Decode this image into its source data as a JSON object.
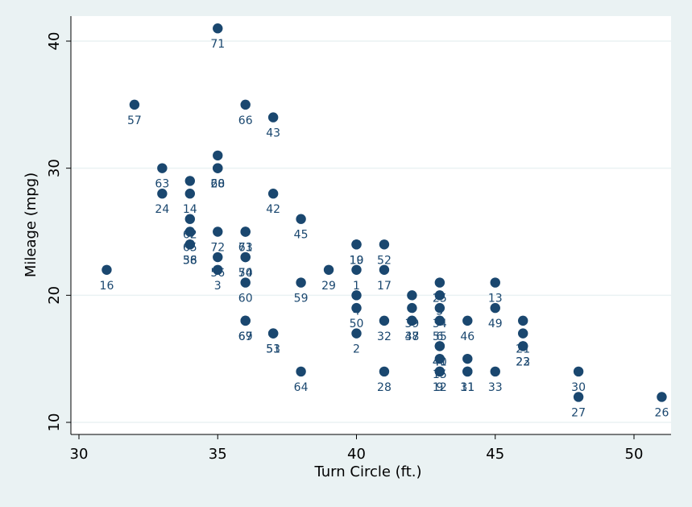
{
  "chart_data": {
    "type": "scatter",
    "xlabel": "Turn Circle (ft.)",
    "ylabel": "Mileage (mpg)",
    "xlim": [
      29.5,
      51.5
    ],
    "ylim": [
      9.5,
      41.0
    ],
    "xticks": [
      "30",
      "35",
      "40",
      "45",
      "50"
    ],
    "yticks": [
      "10",
      "20",
      "30",
      "40"
    ],
    "grid": "horizontal",
    "marker_color": "#1a476f",
    "label_color": "#1a476f",
    "plot_background": "#ffffff",
    "figure_background": "#eaf2f3",
    "points": [
      {
        "x": 35,
        "y": 41,
        "label": "71"
      },
      {
        "x": 32,
        "y": 35,
        "label": "57"
      },
      {
        "x": 36,
        "y": 35,
        "label": "66"
      },
      {
        "x": 37,
        "y": 34,
        "label": "43"
      },
      {
        "x": 35,
        "y": 31,
        "label": ""
      },
      {
        "x": 35,
        "y": 30,
        "label": "68"
      },
      {
        "x": 35,
        "y": 30,
        "label": "20"
      },
      {
        "x": 33,
        "y": 30,
        "label": "63"
      },
      {
        "x": 34,
        "y": 29,
        "label": ""
      },
      {
        "x": 33,
        "y": 28,
        "label": "24"
      },
      {
        "x": 34,
        "y": 28,
        "label": "14"
      },
      {
        "x": 37,
        "y": 28,
        "label": "42"
      },
      {
        "x": 34,
        "y": 26,
        "label": "62"
      },
      {
        "x": 38,
        "y": 26,
        "label": "45"
      },
      {
        "x": 34,
        "y": 25,
        "label": "65"
      },
      {
        "x": 35,
        "y": 25,
        "label": "72"
      },
      {
        "x": 36,
        "y": 25,
        "label": "73"
      },
      {
        "x": 36,
        "y": 25,
        "label": "61"
      },
      {
        "x": 34,
        "y": 24,
        "label": "36"
      },
      {
        "x": 34,
        "y": 24,
        "label": "58"
      },
      {
        "x": 40,
        "y": 24,
        "label": "19"
      },
      {
        "x": 40,
        "y": 24,
        "label": "10"
      },
      {
        "x": 41,
        "y": 24,
        "label": "52"
      },
      {
        "x": 35,
        "y": 23,
        "label": "56"
      },
      {
        "x": 36,
        "y": 23,
        "label": "70"
      },
      {
        "x": 36,
        "y": 23,
        "label": "54"
      },
      {
        "x": 31,
        "y": 22,
        "label": "16"
      },
      {
        "x": 35,
        "y": 22,
        "label": "3"
      },
      {
        "x": 39,
        "y": 22,
        "label": "29"
      },
      {
        "x": 40,
        "y": 22,
        "label": "1"
      },
      {
        "x": 41,
        "y": 22,
        "label": "17"
      },
      {
        "x": 36,
        "y": 21,
        "label": "60"
      },
      {
        "x": 38,
        "y": 21,
        "label": "59"
      },
      {
        "x": 43,
        "y": 21,
        "label": "25"
      },
      {
        "x": 45,
        "y": 21,
        "label": "13"
      },
      {
        "x": 40,
        "y": 20,
        "label": "4"
      },
      {
        "x": 42,
        "y": 20,
        "label": ""
      },
      {
        "x": 43,
        "y": 20,
        "label": "5"
      },
      {
        "x": 40,
        "y": 19,
        "label": "50"
      },
      {
        "x": 42,
        "y": 19,
        "label": "39"
      },
      {
        "x": 43,
        "y": 19,
        "label": "34"
      },
      {
        "x": 45,
        "y": 19,
        "label": "49"
      },
      {
        "x": 36,
        "y": 18,
        "label": "67"
      },
      {
        "x": 36,
        "y": 18,
        "label": "69"
      },
      {
        "x": 41,
        "y": 18,
        "label": "32"
      },
      {
        "x": 42,
        "y": 18,
        "label": "37"
      },
      {
        "x": 42,
        "y": 18,
        "label": "48"
      },
      {
        "x": 43,
        "y": 18,
        "label": "6"
      },
      {
        "x": 43,
        "y": 18,
        "label": "55"
      },
      {
        "x": 44,
        "y": 18,
        "label": "46"
      },
      {
        "x": 46,
        "y": 18,
        "label": ""
      },
      {
        "x": 37,
        "y": 17,
        "label": "51"
      },
      {
        "x": 37,
        "y": 17,
        "label": "53"
      },
      {
        "x": 40,
        "y": 17,
        "label": "2"
      },
      {
        "x": 46,
        "y": 17,
        "label": "21"
      },
      {
        "x": 43,
        "y": 16,
        "label": "40"
      },
      {
        "x": 43,
        "y": 16,
        "label": "41"
      },
      {
        "x": 46,
        "y": 16,
        "label": "23"
      },
      {
        "x": 46,
        "y": 16,
        "label": "22"
      },
      {
        "x": 43,
        "y": 15,
        "label": "15"
      },
      {
        "x": 44,
        "y": 15,
        "label": ""
      },
      {
        "x": 38,
        "y": 14,
        "label": "64"
      },
      {
        "x": 41,
        "y": 14,
        "label": "28"
      },
      {
        "x": 43,
        "y": 14,
        "label": "9"
      },
      {
        "x": 43,
        "y": 14,
        "label": "12"
      },
      {
        "x": 44,
        "y": 14,
        "label": "31"
      },
      {
        "x": 44,
        "y": 14,
        "label": "11"
      },
      {
        "x": 45,
        "y": 14,
        "label": "33"
      },
      {
        "x": 48,
        "y": 14,
        "label": "30"
      },
      {
        "x": 48,
        "y": 12,
        "label": "27"
      },
      {
        "x": 51,
        "y": 12,
        "label": "26"
      }
    ]
  }
}
